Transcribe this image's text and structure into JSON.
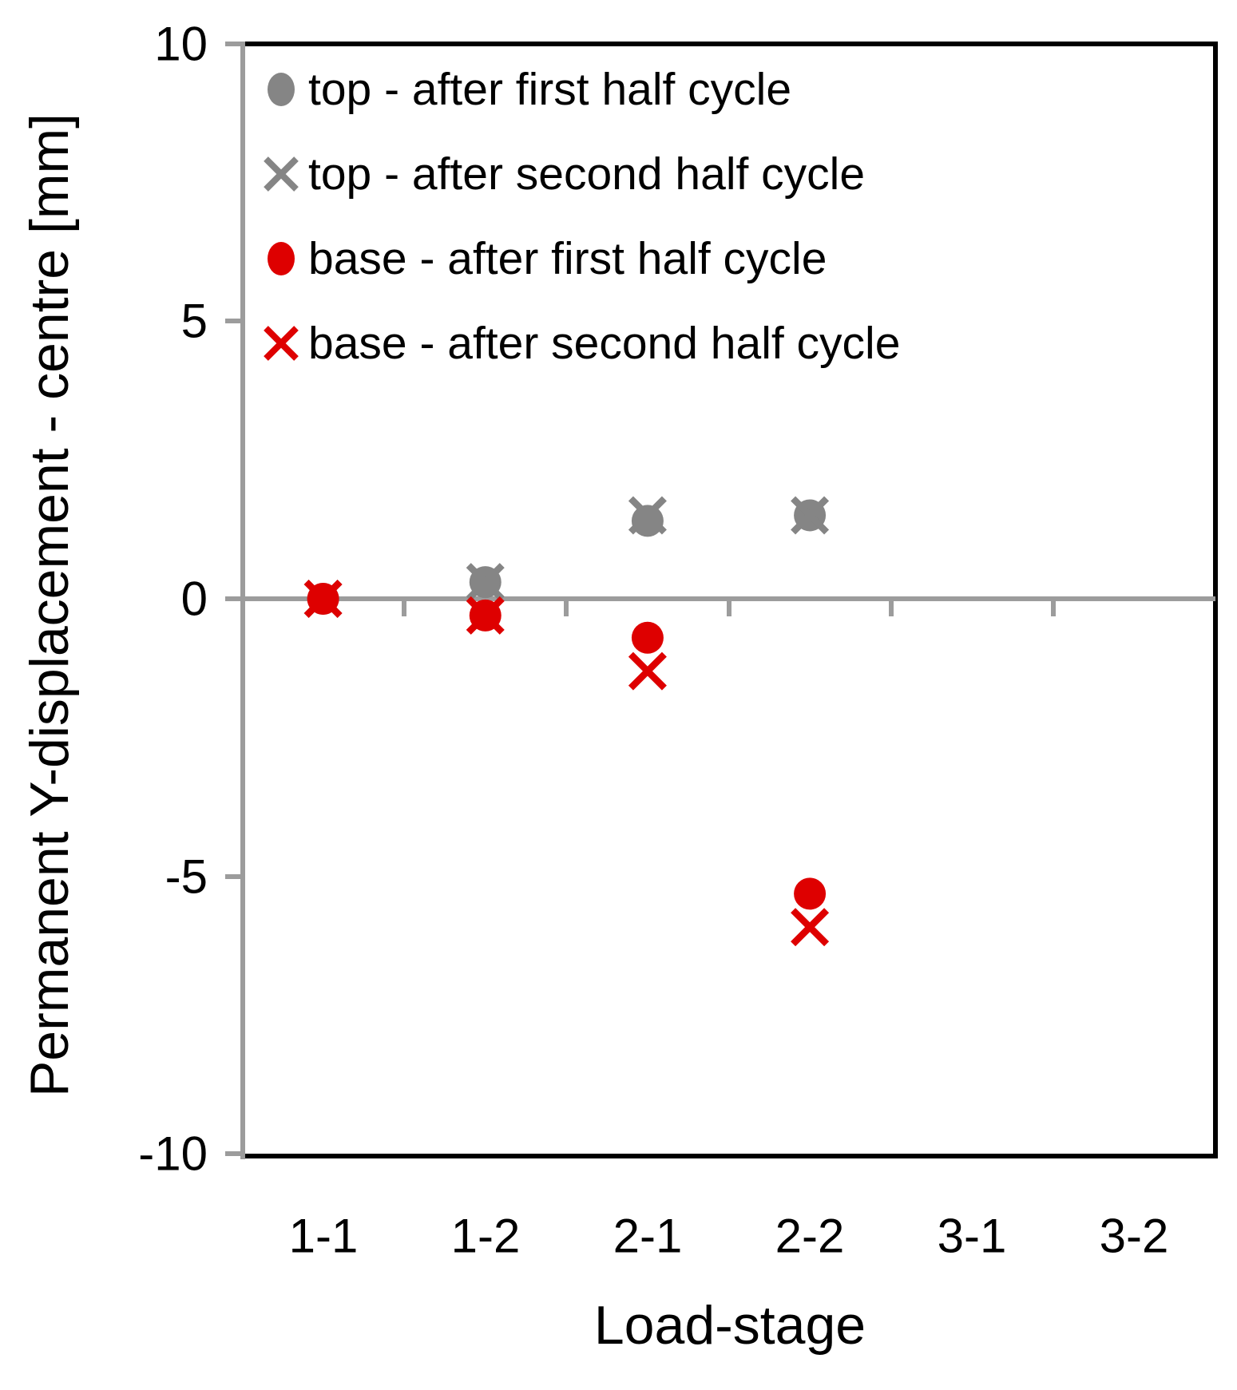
{
  "chart_data": {
    "type": "scatter",
    "title": "",
    "xlabel": "Load-stage",
    "ylabel": "Permanent Y-displacement - centre [mm]",
    "categories": [
      "1-1",
      "1-2",
      "2-1",
      "2-2",
      "3-1",
      "3-2"
    ],
    "ylim": [
      -10,
      10
    ],
    "yticks": [
      10,
      5,
      0,
      -5,
      -10
    ],
    "y_tick_labels": [
      "10",
      "5",
      "0",
      "-5",
      "-10"
    ],
    "grid": "zero line only",
    "legend_position": "top-left inside plot area",
    "colors": {
      "top_series": "#858585",
      "base_series": "#DE0000",
      "axis_line": "#9C9C9C",
      "border": "#000000"
    },
    "series": [
      {
        "name": "top - after first half cycle",
        "marker": "circle",
        "color": "#858585",
        "values": [
          0,
          0.3,
          1.4,
          1.5,
          null,
          null
        ]
      },
      {
        "name": "top - after second half cycle",
        "marker": "x",
        "color": "#858585",
        "values": [
          0,
          0.3,
          1.5,
          1.5,
          null,
          null
        ]
      },
      {
        "name": "base - after first half cycle",
        "marker": "circle",
        "color": "#DE0000",
        "values": [
          0,
          -0.3,
          -0.7,
          -5.3,
          null,
          null
        ]
      },
      {
        "name": "base - after second half cycle",
        "marker": "x",
        "color": "#DE0000",
        "values": [
          0,
          -0.3,
          -1.3,
          -5.9,
          null,
          null
        ]
      }
    ]
  }
}
